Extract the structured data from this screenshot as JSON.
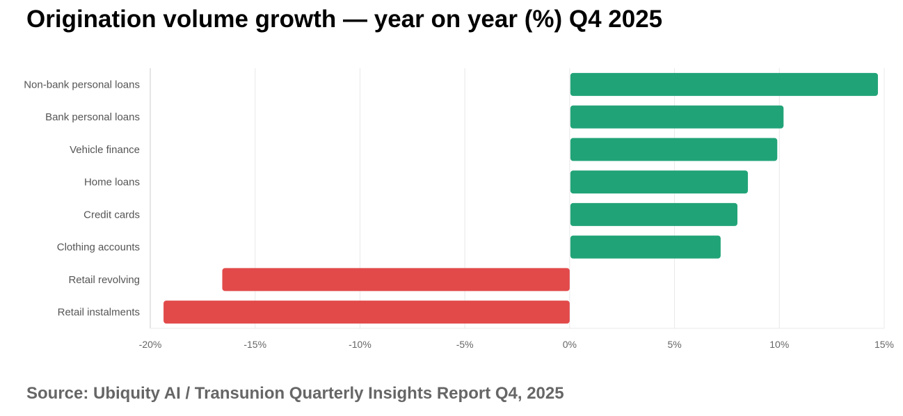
{
  "title": "Origination volume growth — year on year (%) Q4 2025",
  "source": "Source: Ubiquity AI / Transunion Quarterly Insights Report Q4, 2025",
  "colors": {
    "positive": "#21A378",
    "negative": "#E24A4A",
    "grid": "#e8e8e8",
    "axis": "#cccccc"
  },
  "chart_data": {
    "type": "bar",
    "orientation": "horizontal",
    "title": "Origination volume growth — year on year (%) Q4 2025",
    "xlabel": "",
    "ylabel": "",
    "xlim": [
      -20,
      15
    ],
    "grid": true,
    "tick_values": [
      -20,
      -15,
      -10,
      -5,
      0,
      5,
      10,
      15
    ],
    "tick_labels": [
      "-20%",
      "-15%",
      "-10%",
      "-5%",
      "0%",
      "5%",
      "10%",
      "15%"
    ],
    "categories": [
      "Non-bank personal loans",
      "Bank personal loans",
      "Vehicle finance",
      "Home loans",
      "Credit cards",
      "Clothing accounts",
      "Retail revolving",
      "Retail instalments"
    ],
    "values": [
      14.7,
      10.2,
      9.9,
      8.5,
      8.0,
      7.2,
      -16.6,
      -19.4
    ]
  }
}
